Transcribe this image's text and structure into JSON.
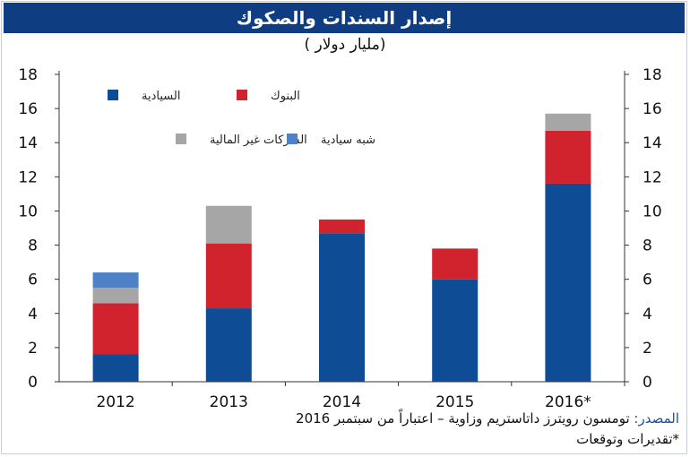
{
  "header": {
    "title": "إصدار السندات والصكوك",
    "unit": "(مليار دولار )"
  },
  "footer": {
    "source_label": "المصدر:",
    "source_text": " تومسون رويترز داتاستريم وزاوية – اعتباراً من سبتمبر  2016",
    "footnote": "*تقديرات وتوقعات"
  },
  "colors": {
    "title_bar": "#0f3d82",
    "sovereign": "#0f4c96",
    "banks": "#d0232e",
    "corporates": "#a6a6a6",
    "quasi_sovereign": "#4f81c7"
  },
  "chart_data": {
    "type": "bar",
    "stacked": true,
    "categories": [
      "2012",
      "2013",
      "2014",
      "2015",
      "2016*"
    ],
    "ylim": [
      0,
      18
    ],
    "yticks": [
      0,
      2,
      4,
      6,
      8,
      10,
      12,
      14,
      16,
      18
    ],
    "y_axis_both_sides": true,
    "grid": false,
    "legend_position": "top-left",
    "series": [
      {
        "name": "السيادية",
        "color": "#0f4c96",
        "values": [
          1.6,
          4.3,
          8.7,
          6.0,
          11.6
        ]
      },
      {
        "name": "البنوك",
        "color": "#d0232e",
        "values": [
          3.0,
          3.8,
          0.8,
          1.8,
          3.1
        ]
      },
      {
        "name": "الشركات غير المالية",
        "color": "#a6a6a6",
        "values": [
          0.9,
          2.2,
          0,
          0,
          1.0
        ]
      },
      {
        "name": "شبه سيادية",
        "color": "#4f81c7",
        "values": [
          0.9,
          0,
          0,
          0,
          0
        ]
      }
    ]
  }
}
